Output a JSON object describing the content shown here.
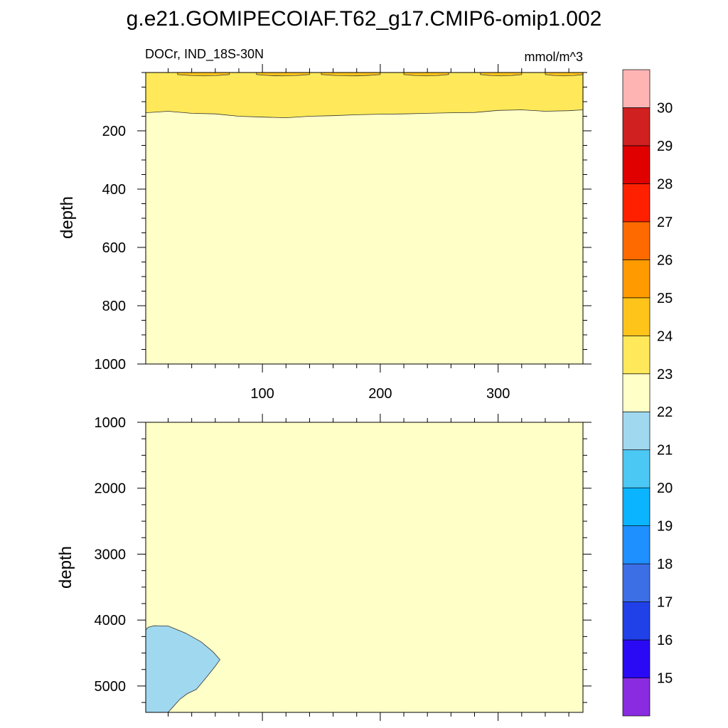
{
  "title": "g.e21.GOMIPECOIAF.T62_g17.CMIP6-omip1.002",
  "top_panel": {
    "left_string": "DOCr, IND_18S-30N",
    "right_string": "mmol/m^3",
    "ylabel": "depth"
  },
  "bottom_panel": {
    "ylabel": "depth"
  },
  "chart_data": [
    {
      "type": "heatmap",
      "panel": "upper",
      "title": "DOCr, IND_18S-30N",
      "units": "mmol/m^3",
      "xlabel": "",
      "ylabel": "depth",
      "xlim": [
        1,
        372
      ],
      "ylim": [
        1000,
        0
      ],
      "y_reversed": true,
      "x_ticks": [
        100,
        200,
        300
      ],
      "y_ticks": [
        200,
        400,
        600,
        800,
        1000
      ],
      "contours": [
        {
          "band": "22-23",
          "description": "background below ~140 m",
          "depth_range": [
            140,
            1000
          ]
        },
        {
          "band": "23-24",
          "depth_range": [
            0,
            140
          ]
        },
        {
          "band": "24-25",
          "depth_range": [
            0,
            10
          ],
          "x_segments": [
            [
              28,
              72
            ],
            [
              95,
              140
            ],
            [
              150,
              200
            ],
            [
              220,
              258
            ],
            [
              285,
              320
            ],
            [
              340,
              372
            ]
          ]
        }
      ],
      "boundary_23_depth_samples": {
        "x": [
          1,
          20,
          40,
          60,
          80,
          100,
          120,
          140,
          160,
          180,
          200,
          220,
          240,
          260,
          280,
          300,
          320,
          340,
          360,
          372
        ],
        "depth": [
          138,
          133,
          140,
          142,
          150,
          153,
          155,
          150,
          148,
          145,
          143,
          142,
          140,
          138,
          137,
          130,
          128,
          133,
          131,
          128
        ]
      }
    },
    {
      "type": "heatmap",
      "panel": "lower",
      "xlabel": "",
      "ylabel": "depth",
      "xlim": [
        1,
        372
      ],
      "ylim": [
        5400,
        1000
      ],
      "y_reversed": true,
      "x_ticks": [
        100,
        200,
        300
      ],
      "y_ticks": [
        1000,
        2000,
        3000,
        4000,
        5000
      ],
      "contours": [
        {
          "band": "22-23",
          "description": "background"
        },
        {
          "band": "21-22",
          "description": "deep water mass near west boundary",
          "x_range": [
            1,
            65
          ],
          "depth_range": [
            4100,
            5400
          ]
        }
      ],
      "blob_outline": {
        "x": [
          1,
          3,
          8,
          20,
          35,
          48,
          58,
          64,
          60,
          52,
          44,
          36,
          30,
          25,
          20
        ],
        "depth": [
          4150,
          4110,
          4085,
          4090,
          4200,
          4330,
          4480,
          4600,
          4700,
          4880,
          5050,
          5120,
          5200,
          5300,
          5400
        ]
      }
    }
  ],
  "colorbar": {
    "labels": [
      "15",
      "16",
      "17",
      "18",
      "19",
      "20",
      "21",
      "22",
      "23",
      "24",
      "25",
      "26",
      "27",
      "28",
      "29",
      "30"
    ],
    "colors": [
      "#8a2be2",
      "#2a0af5",
      "#2040e8",
      "#3c6ee6",
      "#1e90ff",
      "#0ab4ff",
      "#4cc8f5",
      "#a0d8ef",
      "#ffffc8",
      "#ffe95a",
      "#ffc41a",
      "#ff9a00",
      "#ff6a00",
      "#ff2000",
      "#e00000",
      "#d02020",
      "#ffb4b4"
    ]
  }
}
